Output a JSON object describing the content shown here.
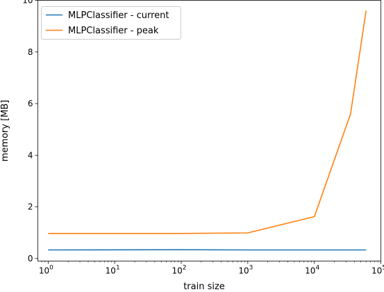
{
  "chart_data": {
    "type": "line",
    "xscale": "log",
    "xlabel": "train size",
    "ylabel": "memory [MB]",
    "xlim": [
      0.7,
      100000
    ],
    "ylim": [
      -0.1,
      10
    ],
    "xticks": [
      {
        "value": 1,
        "base": "10",
        "exp": "0"
      },
      {
        "value": 10,
        "base": "10",
        "exp": "1"
      },
      {
        "value": 100,
        "base": "10",
        "exp": "2"
      },
      {
        "value": 1000,
        "base": "10",
        "exp": "3"
      },
      {
        "value": 10000,
        "base": "10",
        "exp": "4"
      },
      {
        "value": 100000,
        "base": "10",
        "exp": "5"
      }
    ],
    "yticks": [
      {
        "value": 0,
        "label": "0"
      },
      {
        "value": 2,
        "label": "2"
      },
      {
        "value": 4,
        "label": "4"
      },
      {
        "value": 6,
        "label": "6"
      },
      {
        "value": 8,
        "label": "8"
      },
      {
        "value": 10,
        "label": "10"
      }
    ],
    "grid": false,
    "legend_position": "top-left",
    "series": [
      {
        "name": "MLPClassifier - current",
        "color": "#1f77b4",
        "x": [
          1,
          100,
          1000,
          10000,
          35000,
          60000
        ],
        "y": [
          0.33,
          0.34,
          0.33,
          0.33,
          0.33,
          0.33
        ]
      },
      {
        "name": "MLPClassifier - peak",
        "color": "#ff7f0e",
        "x": [
          1,
          100,
          1000,
          10000,
          35000,
          60000
        ],
        "y": [
          0.97,
          0.97,
          0.99,
          1.62,
          5.6,
          9.6
        ]
      }
    ]
  }
}
